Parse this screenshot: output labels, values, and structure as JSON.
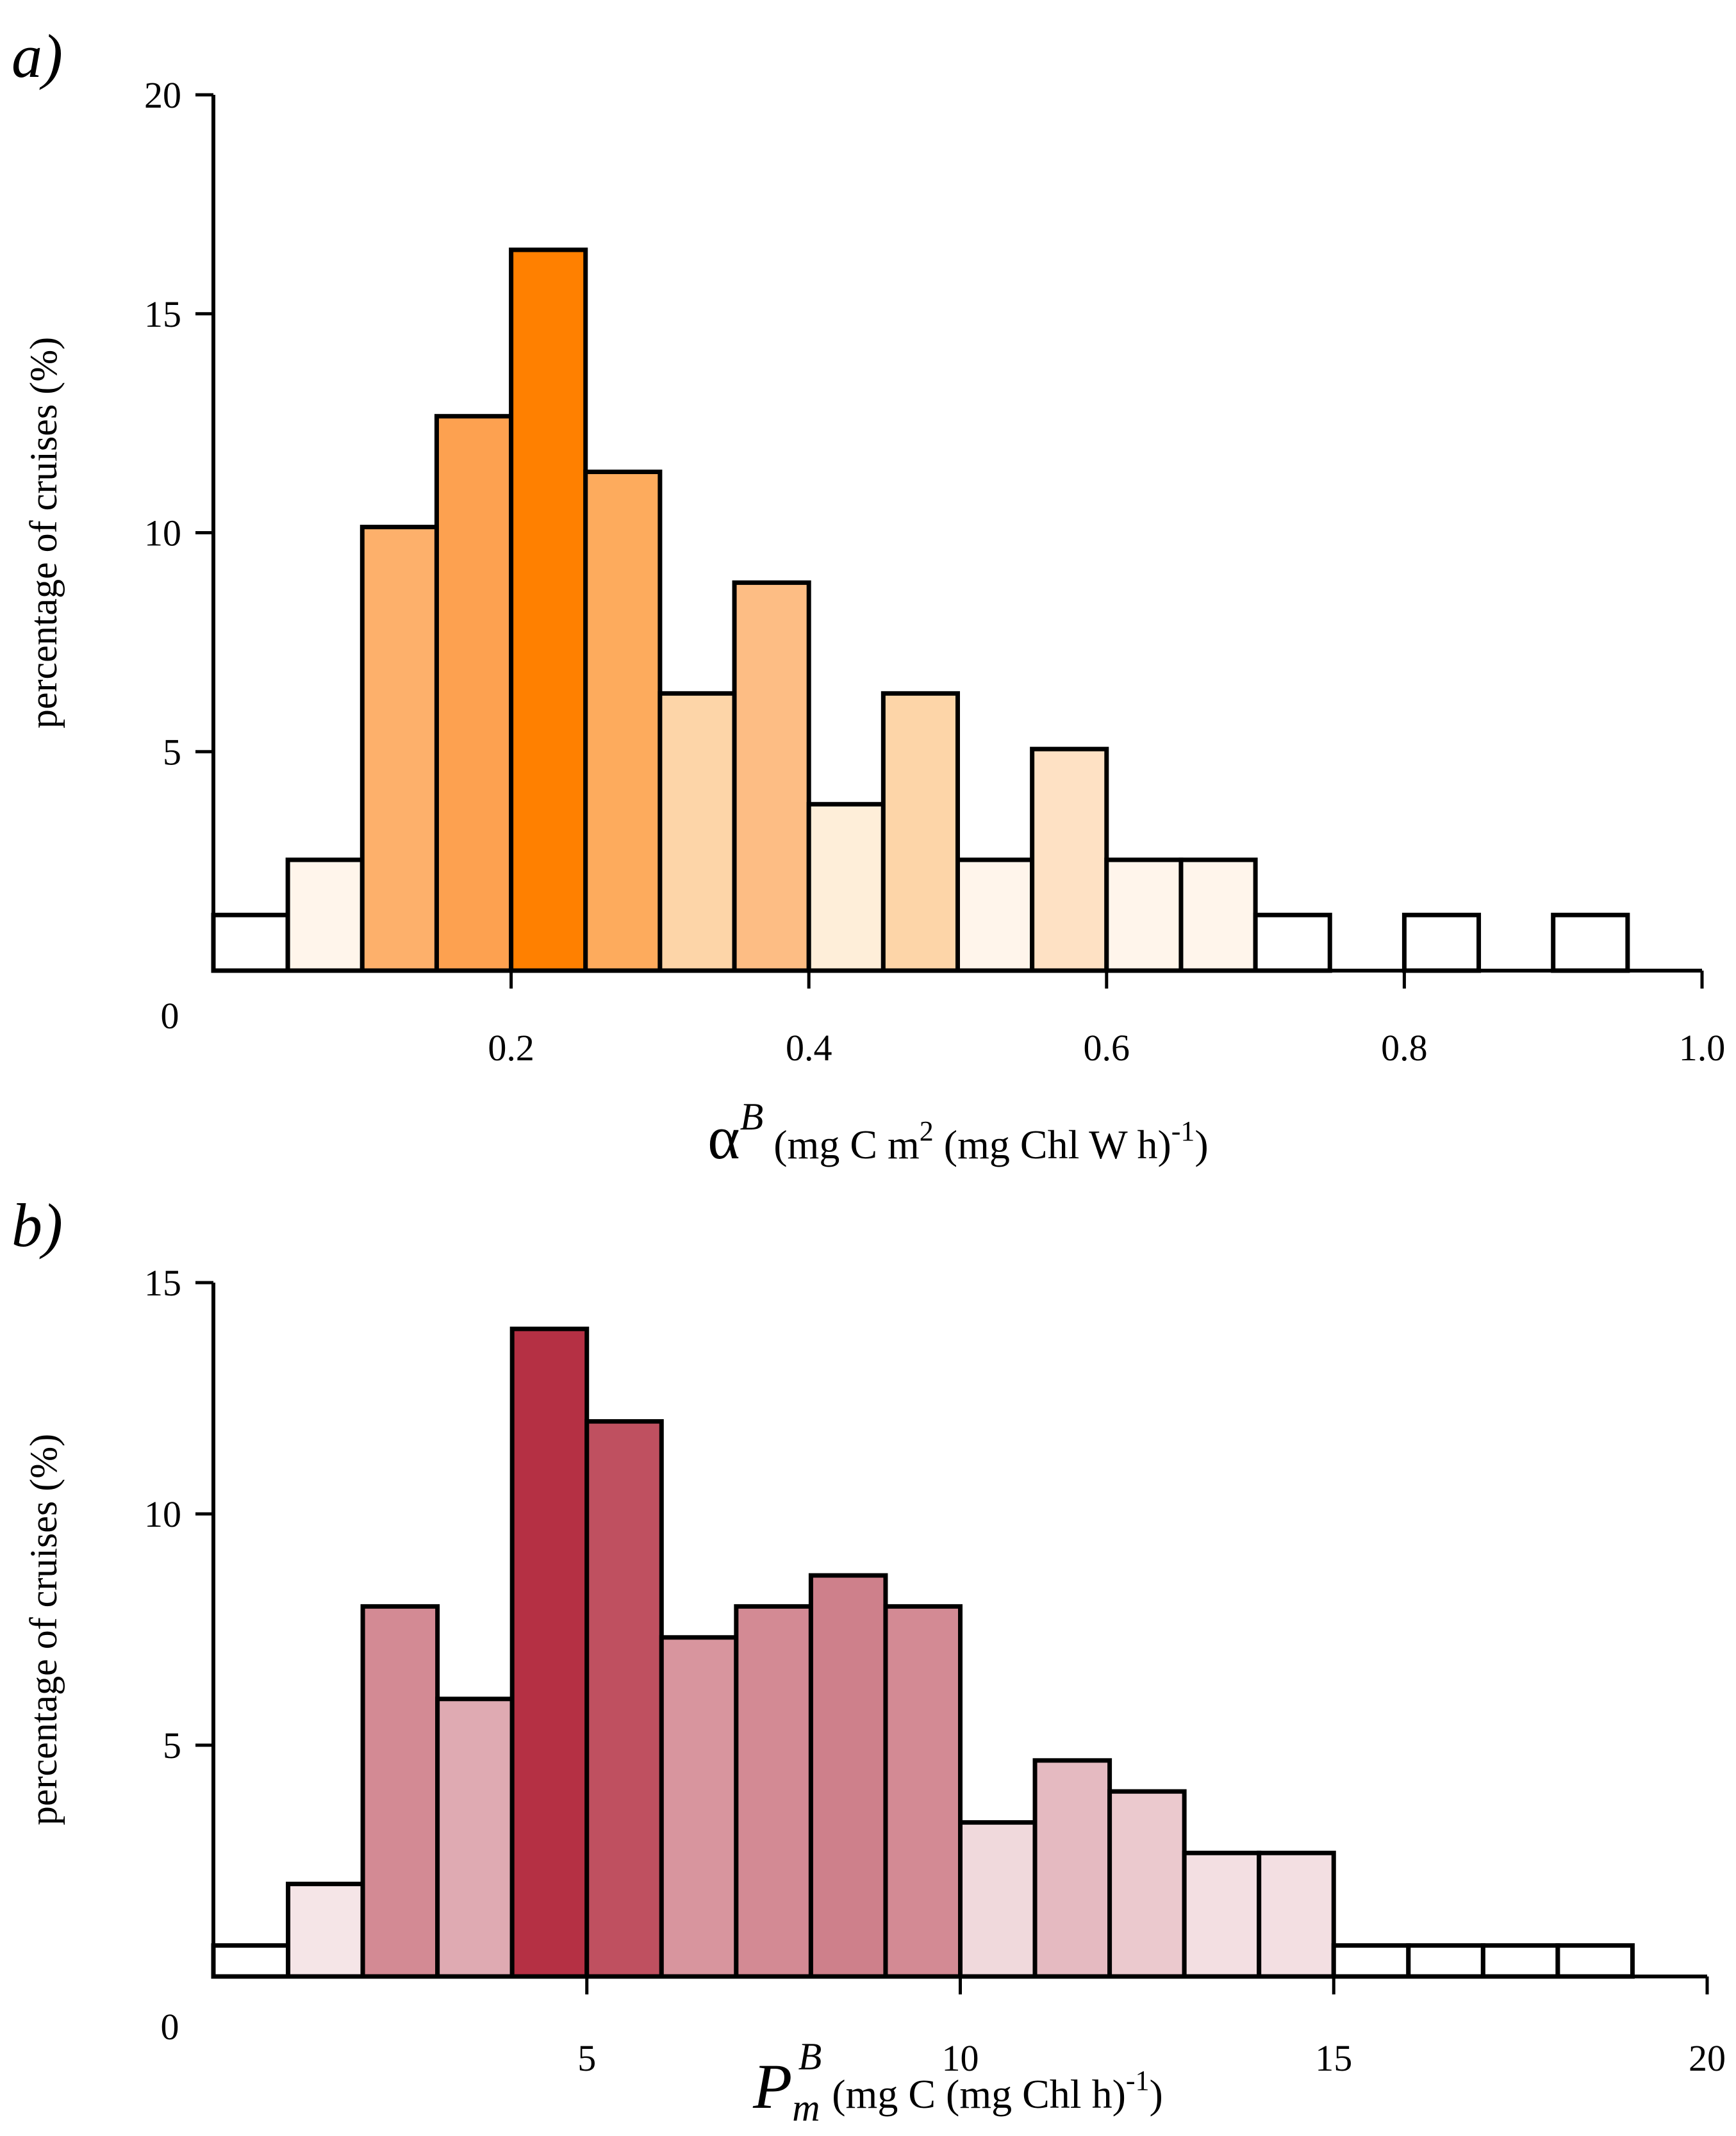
{
  "chart_data": [
    {
      "type": "bar",
      "panel_label": "a)",
      "ylabel": "percentage of cruises  (%)",
      "xlabel": {
        "symbol": "α",
        "sup": "B",
        "units_pre": " (mg C m",
        "units_sup1": "2",
        "units_mid": " (mg Chl W h)",
        "units_sup2": "-1",
        "units_post": ")"
      },
      "xlim": [
        0,
        1.0
      ],
      "ylim": [
        0,
        20
      ],
      "xticks": [
        0.2,
        0.4,
        0.6,
        0.8,
        1.0
      ],
      "xtick_labels": [
        "0.2",
        "0.4",
        "0.6",
        "0.8",
        "1.0"
      ],
      "yticks": [
        0,
        5,
        10,
        15,
        20
      ],
      "ytick_labels": [
        "0",
        "5",
        "10",
        "15",
        "20"
      ],
      "bin_width": 0.05,
      "bins": [
        {
          "x0": 0.0,
          "value": 1.27,
          "color": "#ffffff"
        },
        {
          "x0": 0.05,
          "value": 2.53,
          "color": "#fff5eb"
        },
        {
          "x0": 0.1,
          "value": 10.13,
          "color": "#fdb06b"
        },
        {
          "x0": 0.15,
          "value": 12.66,
          "color": "#fda150"
        },
        {
          "x0": 0.2,
          "value": 16.46,
          "color": "#ff8000"
        },
        {
          "x0": 0.25,
          "value": 11.39,
          "color": "#fdab5d"
        },
        {
          "x0": 0.3,
          "value": 6.33,
          "color": "#fdd5a8"
        },
        {
          "x0": 0.35,
          "value": 8.86,
          "color": "#fdbd84"
        },
        {
          "x0": 0.4,
          "value": 3.8,
          "color": "#feeed9"
        },
        {
          "x0": 0.45,
          "value": 6.33,
          "color": "#fdd5a8"
        },
        {
          "x0": 0.5,
          "value": 2.53,
          "color": "#fff5eb"
        },
        {
          "x0": 0.55,
          "value": 5.06,
          "color": "#fee1c4"
        },
        {
          "x0": 0.6,
          "value": 2.53,
          "color": "#fff5eb"
        },
        {
          "x0": 0.65,
          "value": 2.53,
          "color": "#fff5eb"
        },
        {
          "x0": 0.7,
          "value": 1.27,
          "color": "#ffffff"
        },
        {
          "x0": 0.75,
          "value": 0.0,
          "color": "#ffffff"
        },
        {
          "x0": 0.8,
          "value": 1.27,
          "color": "#ffffff"
        },
        {
          "x0": 0.85,
          "value": 0.0,
          "color": "#ffffff"
        },
        {
          "x0": 0.9,
          "value": 1.27,
          "color": "#ffffff"
        }
      ]
    },
    {
      "type": "bar",
      "panel_label": "b)",
      "ylabel": "percentage of cruises (%)",
      "xlabel": {
        "symbol": "P",
        "sub": "m",
        "sup": "B",
        "units_pre": "  (mg C (mg Chl h)",
        "units_sup1": "-1",
        "units_post": ")"
      },
      "xlim": [
        0,
        20
      ],
      "ylim": [
        0,
        15
      ],
      "xticks": [
        5,
        10,
        15,
        20
      ],
      "xtick_labels": [
        "5",
        "10",
        "15",
        "20"
      ],
      "yticks": [
        0,
        5,
        10,
        15
      ],
      "ytick_labels": [
        "0",
        "5",
        "10",
        "15"
      ],
      "bin_width": 1,
      "bins": [
        {
          "x0": 0,
          "value": 0.67,
          "color": "#ffffff"
        },
        {
          "x0": 1,
          "value": 2.0,
          "color": "#f5e5e7"
        },
        {
          "x0": 2,
          "value": 8.0,
          "color": "#d38a94"
        },
        {
          "x0": 3,
          "value": 6.0,
          "color": "#dfaab2"
        },
        {
          "x0": 4,
          "value": 14.0,
          "color": "#b53044"
        },
        {
          "x0": 5,
          "value": 12.0,
          "color": "#bf5060"
        },
        {
          "x0": 6,
          "value": 7.33,
          "color": "#d8959e"
        },
        {
          "x0": 7,
          "value": 8.0,
          "color": "#d38a94"
        },
        {
          "x0": 8,
          "value": 8.67,
          "color": "#ce808b"
        },
        {
          "x0": 9,
          "value": 8.0,
          "color": "#d38a94"
        },
        {
          "x0": 10,
          "value": 3.33,
          "color": "#f0d9dc"
        },
        {
          "x0": 11,
          "value": 4.67,
          "color": "#e5bac1"
        },
        {
          "x0": 12,
          "value": 4.0,
          "color": "#ebc9ce"
        },
        {
          "x0": 13,
          "value": 2.67,
          "color": "#f3dfe2"
        },
        {
          "x0": 14,
          "value": 2.67,
          "color": "#f3dfe2"
        },
        {
          "x0": 15,
          "value": 0.67,
          "color": "#ffffff"
        },
        {
          "x0": 16,
          "value": 0.67,
          "color": "#ffffff"
        },
        {
          "x0": 17,
          "value": 0.67,
          "color": "#ffffff"
        },
        {
          "x0": 18,
          "value": 0.67,
          "color": "#ffffff"
        }
      ]
    }
  ]
}
